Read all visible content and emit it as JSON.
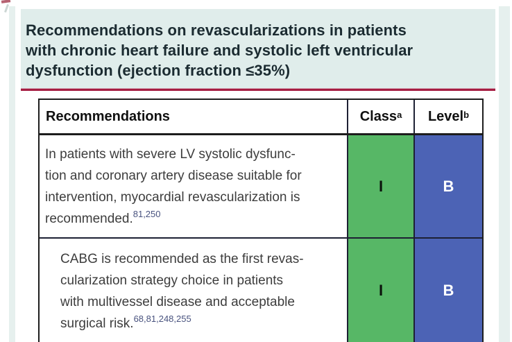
{
  "title_lines": [
    "Recommendations on revascularizations in patients",
    "with chronic heart failure and systolic left ventricular",
    "dysfunction (ejection fraction ≤35%)"
  ],
  "table": {
    "header": {
      "recommendations": "Recommendations",
      "class_label": "Class",
      "class_sup": "a",
      "level_label": "Level",
      "level_sup": "b"
    },
    "rows": [
      {
        "lines": [
          "In patients with severe LV systolic dysfunc-",
          "tion and coronary artery disease suitable for",
          "intervention, myocardial revascularization is",
          "recommended."
        ],
        "refs": "81,250",
        "class": "I",
        "level": "B"
      },
      {
        "lines": [
          "CABG is recommended as the first revas-",
          "cularization strategy choice in patients",
          "with multivessel disease and acceptable",
          "surgical risk."
        ],
        "refs": "68,81,248,255",
        "class": "I",
        "level": "B"
      }
    ]
  },
  "colors": {
    "panel_bg": "#e0edeb",
    "edge_strip": "#e6f0ee",
    "rule_red": "#a51d41",
    "class_green": "#57b766",
    "level_blue": "#4c63b5",
    "ref_text": "#49537f",
    "title_text": "#1b2b31",
    "body_text": "#3d3d3d"
  }
}
